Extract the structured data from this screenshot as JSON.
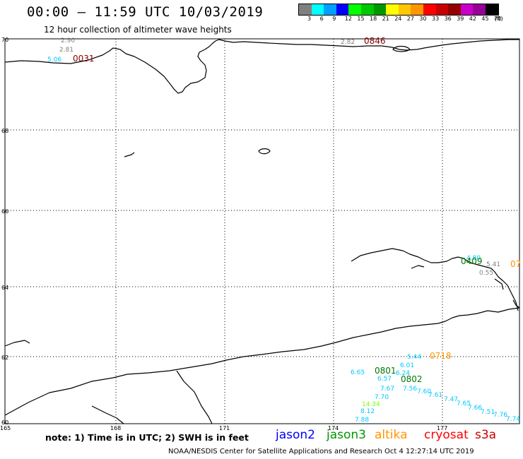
{
  "header": {
    "title": "00:00 – 11:59 UTC 10/03/2019",
    "subtitle": "12 hour collection of altimeter wave heights"
  },
  "legend": {
    "colors": [
      "#808080",
      "#00ffff",
      "#00a0ff",
      "#0000ff",
      "#00ff00",
      "#00c800",
      "#009600",
      "#ffff00",
      "#ffc800",
      "#ff9600",
      "#ff0000",
      "#c80000",
      "#960000",
      "#c800c8",
      "#960096",
      "#000000"
    ],
    "labels": [
      "3",
      "6",
      "9",
      "12",
      "15",
      "18",
      "21",
      "24",
      "27",
      "30",
      "33",
      "36",
      "39",
      "42",
      "45",
      "70",
      "(ft)"
    ]
  },
  "axes": {
    "lat_labels": [
      "70",
      "68",
      "66",
      "64",
      "62",
      "60"
    ],
    "lon_labels": [
      "165",
      "168",
      "171",
      "174",
      "177"
    ]
  },
  "annotations": [
    {
      "text": "2.90",
      "color": "#808080"
    },
    {
      "text": "2.81",
      "color": "#808080"
    },
    {
      "text": "5.06",
      "color": "#00c8ff"
    },
    {
      "text": "0031",
      "color": "#8b0000"
    },
    {
      "text": "2.82",
      "color": "#808080"
    },
    {
      "text": "0846",
      "color": "#8b0000"
    },
    {
      "text": "4.80",
      "color": "#00c8ff"
    },
    {
      "text": "0409",
      "color": "#007800"
    },
    {
      "text": "5.41",
      "color": "#808080"
    },
    {
      "text": "07",
      "color": "#ff9600"
    },
    {
      "text": "0.55",
      "color": "#808080"
    },
    {
      "text": "5.44",
      "color": "#00c8ff"
    },
    {
      "text": "0718",
      "color": "#ff9600"
    },
    {
      "text": "6.01",
      "color": "#00c8ff"
    },
    {
      "text": "6.65",
      "color": "#00c8ff"
    },
    {
      "text": "0801",
      "color": "#007800"
    },
    {
      "text": "6.24",
      "color": "#00c8ff"
    },
    {
      "text": "6.57",
      "color": "#00c8ff"
    },
    {
      "text": "0802",
      "color": "#007800"
    },
    {
      "text": "7.67",
      "color": "#00c8ff"
    },
    {
      "text": "7.56",
      "color": "#00c8ff"
    },
    {
      "text": "7.60",
      "color": "#00c8ff"
    },
    {
      "text": "7.61",
      "color": "#00c8ff"
    },
    {
      "text": "7.70",
      "color": "#00c8ff"
    },
    {
      "text": "7.47",
      "color": "#00c8ff"
    },
    {
      "text": "7.65",
      "color": "#00c8ff"
    },
    {
      "text": "14.34",
      "color": "#7fff00"
    },
    {
      "text": "7.66",
      "color": "#00c8ff"
    },
    {
      "text": "8.12",
      "color": "#00c8ff"
    },
    {
      "text": "7.51",
      "color": "#00c8ff"
    },
    {
      "text": "7.88",
      "color": "#00c8ff"
    },
    {
      "text": "7.76",
      "color": "#00c8ff"
    },
    {
      "text": "7.74",
      "color": "#00c8ff"
    }
  ],
  "footer": {
    "note": "note:  1) Time is in UTC;  2) SWH is in feet",
    "satellites": [
      {
        "name": "jason2",
        "color": "#0000ff"
      },
      {
        "name": "jason3",
        "color": "#009600"
      },
      {
        "name": "altika",
        "color": "#ff9600"
      },
      {
        "name": "cryosat",
        "color": "#ff0000"
      },
      {
        "name": "s3a",
        "color": "#c80000"
      }
    ],
    "credit": "NOAA/NESDIS Center for Satellite Applications and Research     Oct  4 12:27:14 UTC 2019"
  }
}
